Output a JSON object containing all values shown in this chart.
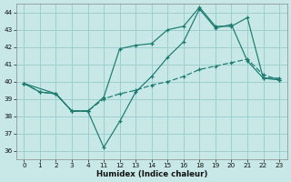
{
  "xlabel": "Humidex (Indice chaleur)",
  "bg_color": "#c8e8e8",
  "grid_color": "#9ecece",
  "line_color": "#1a7a6e",
  "ylim": [
    35.5,
    44.5
  ],
  "yticks": [
    36,
    37,
    38,
    39,
    40,
    41,
    42,
    43,
    44
  ],
  "hours": [
    0,
    1,
    2,
    3,
    4,
    11,
    12,
    13,
    14,
    15,
    16,
    18,
    19,
    20,
    21,
    22,
    23
  ],
  "line1_y": [
    39.9,
    39.4,
    39.3,
    38.3,
    38.3,
    36.2,
    37.7,
    39.4,
    40.3,
    41.4,
    42.3,
    44.2,
    43.1,
    43.3,
    41.2,
    40.2,
    40.1
  ],
  "line2_x_hours": [
    0,
    2,
    3,
    4,
    11,
    12,
    13,
    14,
    15,
    16,
    18,
    19,
    20,
    21,
    22,
    23
  ],
  "line2_y": [
    39.9,
    39.3,
    38.3,
    38.3,
    39.1,
    41.9,
    42.1,
    42.2,
    43.0,
    43.2,
    44.3,
    43.2,
    43.2,
    43.7,
    40.2,
    40.2
  ],
  "line3_y": [
    39.9,
    39.4,
    39.3,
    38.3,
    38.3,
    39.0,
    39.3,
    39.5,
    39.8,
    40.0,
    40.3,
    40.7,
    40.9,
    41.1,
    41.3,
    40.4,
    40.1
  ]
}
